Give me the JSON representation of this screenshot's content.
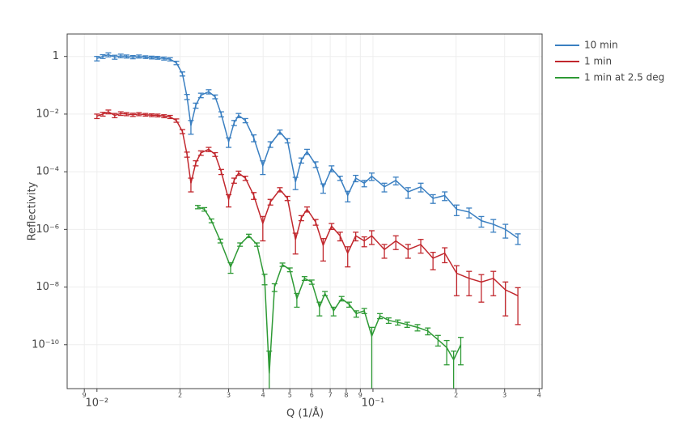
{
  "chart_data": {
    "type": "line",
    "error_bars": true,
    "x_log": true,
    "y_log": true,
    "grid": true,
    "legend": "top-right-outside",
    "x_label": "Q (1/Å)",
    "y_label": "Reflectivity",
    "xlim": [
      0.0078,
      0.41
    ],
    "ylim": [
      3e-12,
      6
    ],
    "xticks": [
      {
        "value": 0.009,
        "label": "9"
      },
      {
        "value": 0.01,
        "label": "10⁻²"
      },
      {
        "value": 0.02,
        "label": "2"
      },
      {
        "value": 0.03,
        "label": "3"
      },
      {
        "value": 0.04,
        "label": "4"
      },
      {
        "value": 0.05,
        "label": "5"
      },
      {
        "value": 0.06,
        "label": "6"
      },
      {
        "value": 0.07,
        "label": "7"
      },
      {
        "value": 0.08,
        "label": "8"
      },
      {
        "value": 0.09,
        "label": "9"
      },
      {
        "value": 0.1,
        "label": "10⁻¹"
      },
      {
        "value": 0.2,
        "label": "2"
      },
      {
        "value": 0.3,
        "label": "3"
      },
      {
        "value": 0.4,
        "label": "4"
      }
    ],
    "yticks": [
      1,
      {
        "value": 0.01,
        "label": "10⁻²"
      },
      {
        "value": 0.0001,
        "label": "10⁻⁴"
      },
      {
        "value": 1e-06,
        "label": "10⁻⁶"
      },
      {
        "value": 1e-08,
        "label": "10⁻⁸"
      },
      {
        "value": 1e-10,
        "label": "10⁻¹⁰"
      }
    ],
    "series": [
      {
        "name": "10 min",
        "color": "#3a7fc1",
        "x": [
          0.01,
          0.0105,
          0.011,
          0.0116,
          0.0122,
          0.0128,
          0.0135,
          0.0142,
          0.015,
          0.0158,
          0.0166,
          0.0175,
          0.0184,
          0.0194,
          0.0204,
          0.0212,
          0.0219,
          0.0228,
          0.0238,
          0.0254,
          0.0268,
          0.0282,
          0.03,
          0.0314,
          0.0326,
          0.0345,
          0.037,
          0.0399,
          0.0425,
          0.046,
          0.049,
          0.0524,
          0.055,
          0.0577,
          0.062,
          0.066,
          0.0708,
          0.076,
          0.081,
          0.0866,
          0.093,
          0.099,
          0.11,
          0.121,
          0.134,
          0.149,
          0.165,
          0.182,
          0.201,
          0.223,
          0.247,
          0.273,
          0.302,
          0.335
        ],
        "values": [
          0.85,
          1.0,
          1.15,
          0.95,
          1.05,
          1.0,
          0.95,
          1.0,
          0.95,
          0.92,
          0.9,
          0.85,
          0.8,
          0.6,
          0.25,
          0.04,
          0.004,
          0.02,
          0.045,
          0.06,
          0.04,
          0.01,
          0.0011,
          0.005,
          0.009,
          0.006,
          0.0015,
          0.00016,
          0.0009,
          0.0024,
          0.0012,
          4.4e-05,
          0.00025,
          0.0005,
          0.00018,
          2.8e-05,
          0.00013,
          6e-05,
          1.5e-05,
          6e-05,
          4e-05,
          7e-05,
          3e-05,
          5e-05,
          2e-05,
          3e-05,
          1.2e-05,
          1.5e-05,
          5e-06,
          4e-06,
          2e-06,
          1.5e-06,
          1e-06,
          5e-07
        ],
        "errors": [
          0.15,
          0.15,
          0.18,
          0.15,
          0.15,
          0.12,
          0.12,
          0.12,
          0.1,
          0.1,
          0.1,
          0.1,
          0.1,
          0.08,
          0.04,
          0.008,
          0.002,
          0.004,
          0.008,
          0.01,
          0.006,
          0.002,
          0.0004,
          0.001,
          0.0015,
          0.001,
          0.0004,
          8e-05,
          0.0002,
          0.0004,
          0.0002,
          2e-05,
          5e-05,
          0.0001,
          4e-05,
          1e-05,
          3e-05,
          1e-05,
          6e-06,
          1.5e-05,
          1e-05,
          2e-05,
          1e-05,
          1.5e-05,
          8e-06,
          1e-05,
          4e-06,
          5e-06,
          2e-06,
          1.5e-06,
          8e-07,
          7e-07,
          5e-07,
          2e-07
        ]
      },
      {
        "name": "1 min",
        "color": "#c1272d",
        "x": [
          0.01,
          0.0105,
          0.011,
          0.0116,
          0.0122,
          0.0128,
          0.0135,
          0.0142,
          0.015,
          0.0158,
          0.0166,
          0.0175,
          0.0184,
          0.0194,
          0.0204,
          0.0212,
          0.0219,
          0.0228,
          0.0238,
          0.0254,
          0.0268,
          0.0282,
          0.03,
          0.0314,
          0.0326,
          0.0345,
          0.037,
          0.0399,
          0.0425,
          0.046,
          0.049,
          0.0524,
          0.055,
          0.0577,
          0.062,
          0.066,
          0.0708,
          0.076,
          0.081,
          0.0866,
          0.093,
          0.099,
          0.11,
          0.121,
          0.134,
          0.149,
          0.165,
          0.182,
          0.201,
          0.223,
          0.247,
          0.273,
          0.302,
          0.335
        ],
        "values": [
          0.0085,
          0.01,
          0.012,
          0.009,
          0.0105,
          0.01,
          0.0095,
          0.01,
          0.0095,
          0.0092,
          0.009,
          0.0085,
          0.008,
          0.006,
          0.0025,
          0.0004,
          4e-05,
          0.0002,
          0.00045,
          0.0006,
          0.0004,
          0.0001,
          1.1e-05,
          5e-05,
          9e-05,
          6e-05,
          1.5e-05,
          1.6e-06,
          9e-06,
          2.4e-05,
          1.2e-05,
          4.4e-07,
          2.5e-06,
          5e-06,
          1.8e-06,
          2.8e-07,
          1.3e-06,
          6e-07,
          1.5e-07,
          6e-07,
          4e-07,
          6e-07,
          2e-07,
          4e-07,
          2e-07,
          3e-07,
          1e-07,
          1.5e-07,
          3e-08,
          2e-08,
          1.5e-08,
          2e-08,
          8e-09,
          5e-09
        ],
        "errors": [
          0.0015,
          0.0015,
          0.0018,
          0.0015,
          0.0015,
          0.0012,
          0.0012,
          0.0012,
          0.001,
          0.001,
          0.001,
          0.001,
          0.001,
          0.0008,
          0.0004,
          8e-05,
          2e-05,
          4e-05,
          8e-05,
          0.0001,
          6e-05,
          2e-05,
          5e-06,
          1e-05,
          1.5e-05,
          1e-05,
          4e-06,
          1.2e-06,
          2e-06,
          4e-06,
          2e-06,
          3e-07,
          5e-07,
          1e-06,
          4e-07,
          2e-07,
          3e-07,
          2e-07,
          1e-07,
          2e-07,
          1.5e-07,
          3e-07,
          1e-07,
          2e-07,
          1e-07,
          1.5e-07,
          6e-08,
          8e-08,
          2.5e-08,
          1.5e-08,
          1.2e-08,
          1.5e-08,
          7e-09,
          4.5e-09
        ]
      },
      {
        "name": "1 min at 2.5 deg",
        "color": "#2e9a35",
        "x": [
          0.0232,
          0.0245,
          0.026,
          0.028,
          0.0305,
          0.033,
          0.0355,
          0.038,
          0.0405,
          0.0421,
          0.044,
          0.047,
          0.05,
          0.053,
          0.0565,
          0.06,
          0.064,
          0.067,
          0.072,
          0.077,
          0.082,
          0.087,
          0.093,
          0.099,
          0.106,
          0.114,
          0.123,
          0.133,
          0.145,
          0.158,
          0.172,
          0.185,
          0.196,
          0.208
        ],
        "values": [
          6e-06,
          5e-06,
          2e-06,
          4e-07,
          5e-08,
          3e-07,
          6e-07,
          3e-07,
          2e-08,
          1e-11,
          1e-08,
          6e-08,
          4e-08,
          4e-09,
          2e-08,
          1.5e-08,
          2e-09,
          6e-09,
          1.5e-09,
          4e-09,
          2.5e-09,
          1.2e-09,
          1.5e-09,
          2e-10,
          1e-09,
          7e-10,
          6e-10,
          5e-10,
          4e-10,
          3e-10,
          1.5e-10,
          8e-11,
          3e-11,
          1e-10
        ],
        "errors": [
          8e-07,
          7e-07,
          3e-07,
          6e-08,
          2e-08,
          4e-08,
          8e-08,
          4e-08,
          8e-09,
          5e-11,
          3e-09,
          8e-09,
          6e-09,
          2e-09,
          3e-09,
          2.5e-09,
          1e-09,
          1e-09,
          5e-10,
          7e-10,
          5e-10,
          3e-10,
          3e-10,
          2e-10,
          2e-10,
          1.5e-10,
          1.2e-10,
          1e-10,
          1e-10,
          8e-11,
          6e-11,
          6e-11,
          3e-11,
          8e-11
        ]
      }
    ]
  }
}
